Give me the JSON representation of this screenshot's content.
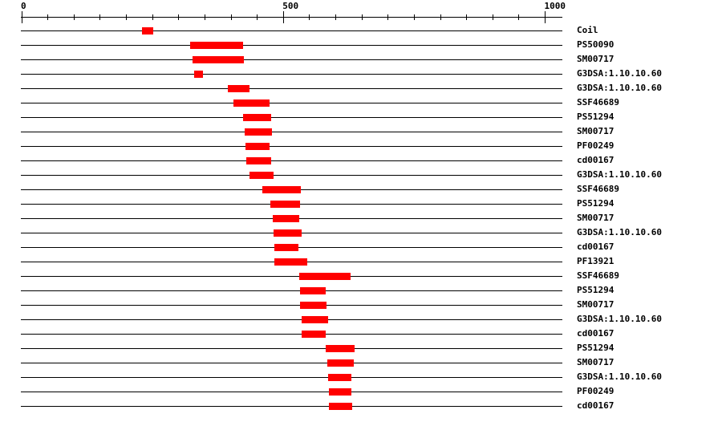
{
  "scale": {
    "min": 0,
    "max": 1035,
    "labeled_ticks": [
      "0",
      "500",
      "1000"
    ],
    "minor_tick_step": 50
  },
  "bar_color": "#ff0000",
  "features": [
    {
      "label": "Coil",
      "start": 230,
      "end": 252
    },
    {
      "label": "PS50090",
      "start": 323,
      "end": 424
    },
    {
      "label": "SM00717",
      "start": 327,
      "end": 425
    },
    {
      "label": "G3DSA:1.10.10.60",
      "start": 330,
      "end": 347
    },
    {
      "label": "G3DSA:1.10.10.60",
      "start": 395,
      "end": 436
    },
    {
      "label": "SSF46689",
      "start": 405,
      "end": 474
    },
    {
      "label": "PS51294",
      "start": 424,
      "end": 477
    },
    {
      "label": "SM00717",
      "start": 427,
      "end": 479
    },
    {
      "label": "PF00249",
      "start": 428,
      "end": 474
    },
    {
      "label": "cd00167",
      "start": 430,
      "end": 477
    },
    {
      "label": "G3DSA:1.10.10.60",
      "start": 436,
      "end": 482
    },
    {
      "label": "SSF46689",
      "start": 460,
      "end": 534
    },
    {
      "label": "PS51294",
      "start": 476,
      "end": 533
    },
    {
      "label": "SM00717",
      "start": 480,
      "end": 531
    },
    {
      "label": "G3DSA:1.10.10.60",
      "start": 482,
      "end": 536
    },
    {
      "label": "cd00167",
      "start": 483,
      "end": 530
    },
    {
      "label": "PF13921",
      "start": 483,
      "end": 546
    },
    {
      "label": "SSF46689",
      "start": 531,
      "end": 629
    },
    {
      "label": "PS51294",
      "start": 533,
      "end": 582
    },
    {
      "label": "SM00717",
      "start": 533,
      "end": 583
    },
    {
      "label": "G3DSA:1.10.10.60",
      "start": 536,
      "end": 586
    },
    {
      "label": "cd00167",
      "start": 536,
      "end": 582
    },
    {
      "label": "PS51294",
      "start": 582,
      "end": 637
    },
    {
      "label": "SM00717",
      "start": 585,
      "end": 636
    },
    {
      "label": "G3DSA:1.10.10.60",
      "start": 586,
      "end": 631
    },
    {
      "label": "PF00249",
      "start": 588,
      "end": 631
    },
    {
      "label": "cd00167",
      "start": 588,
      "end": 632
    }
  ]
}
